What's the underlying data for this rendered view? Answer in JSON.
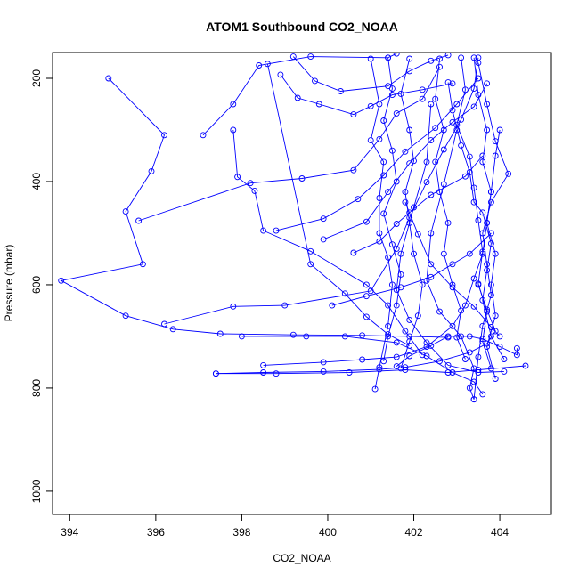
{
  "chart_data": {
    "type": "line",
    "title": "ATOM1 Southbound CO2_NOAA",
    "xlabel": "CO2_NOAA",
    "ylabel": "Pressure (mbar)",
    "xlim": [
      393.6,
      405.2
    ],
    "ylim": [
      1045,
      150
    ],
    "y_reversed": true,
    "x_ticks": [
      "394",
      "396",
      "398",
      "400",
      "402",
      "404"
    ],
    "y_ticks": [
      "200",
      "400",
      "600",
      "800",
      "1000"
    ],
    "grid": false,
    "legend": "none",
    "series_color": "#0000ff",
    "marker": "open-circle",
    "profiles": [
      [
        [
          394.9,
          200
        ],
        [
          396.2,
          310
        ],
        [
          395.9,
          380
        ],
        [
          395.3,
          458
        ],
        [
          395.7,
          560
        ],
        [
          393.8,
          592
        ],
        [
          395.3,
          660
        ],
        [
          396.4,
          686
        ],
        [
          397.5,
          695
        ],
        [
          399.2,
          697
        ],
        [
          400.8,
          698
        ],
        [
          401.9,
          700
        ],
        [
          402.8,
          702
        ]
      ],
      [
        [
          395.6,
          476
        ],
        [
          398.2,
          403
        ],
        [
          399.4,
          394
        ],
        [
          400.6,
          378
        ],
        [
          401.2,
          318
        ],
        [
          401.6,
          268
        ],
        [
          402.2,
          240
        ],
        [
          402.6,
          178
        ]
      ],
      [
        [
          397.1,
          310
        ],
        [
          397.8,
          250
        ],
        [
          398.4,
          175
        ],
        [
          399.6,
          158
        ],
        [
          401.4,
          160
        ],
        [
          401.6,
          152
        ]
      ],
      [
        [
          396.2,
          676
        ],
        [
          397.8,
          642
        ],
        [
          399.0,
          640
        ],
        [
          401.0,
          612
        ],
        [
          401.6,
          530
        ],
        [
          401.9,
          470
        ],
        [
          402.3,
          401
        ],
        [
          402.7,
          338
        ],
        [
          403.1,
          280
        ],
        [
          403.4,
          220
        ],
        [
          403.5,
          160
        ]
      ],
      [
        [
          397.4,
          772
        ],
        [
          398.5,
          770
        ],
        [
          399.9,
          768
        ],
        [
          401.2,
          764
        ],
        [
          401.8,
          760
        ],
        [
          402.6,
          748
        ],
        [
          403.3,
          731
        ],
        [
          403.7,
          714
        ],
        [
          403.9,
          690
        ],
        [
          403.7,
          648
        ],
        [
          403.5,
          600
        ]
      ],
      [
        [
          397.4,
          772
        ],
        [
          398.8,
          772
        ],
        [
          400.5,
          770
        ],
        [
          401.8,
          765
        ],
        [
          402.8,
          770
        ],
        [
          403.5,
          765
        ],
        [
          404.6,
          757
        ]
      ],
      [
        [
          398.5,
          756
        ],
        [
          399.9,
          750
        ],
        [
          400.8,
          745
        ],
        [
          401.6,
          740
        ],
        [
          402.3,
          720
        ],
        [
          402.9,
          680
        ],
        [
          403.2,
          640
        ],
        [
          403.4,
          588
        ],
        [
          403.6,
          540
        ],
        [
          403.7,
          480
        ],
        [
          403.8,
          420
        ],
        [
          403.9,
          350
        ],
        [
          404.0,
          300
        ]
      ],
      [
        [
          398.0,
          700
        ],
        [
          399.5,
          700
        ],
        [
          400.4,
          700
        ],
        [
          401.6,
          712
        ],
        [
          402.3,
          738
        ],
        [
          402.9,
          770
        ],
        [
          403.4,
          788
        ],
        [
          403.6,
          812
        ]
      ],
      [
        [
          397.8,
          300
        ],
        [
          397.9,
          391
        ],
        [
          398.3,
          418
        ],
        [
          398.5,
          495
        ],
        [
          399.6,
          535
        ],
        [
          400.9,
          600
        ],
        [
          401.4,
          640
        ],
        [
          401.8,
          690
        ],
        [
          402.2,
          736
        ]
      ],
      [
        [
          398.8,
          495
        ],
        [
          399.9,
          472
        ],
        [
          400.7,
          434
        ],
        [
          401.3,
          388
        ],
        [
          401.8,
          342
        ],
        [
          402.5,
          296
        ],
        [
          403.0,
          250
        ],
        [
          403.5,
          200
        ]
      ],
      [
        [
          398.9,
          193
        ],
        [
          399.3,
          238
        ],
        [
          399.8,
          250
        ],
        [
          400.6,
          270
        ],
        [
          401.0,
          254
        ],
        [
          401.5,
          232
        ],
        [
          402.2,
          222
        ],
        [
          402.9,
          210
        ]
      ],
      [
        [
          399.2,
          158
        ],
        [
          399.7,
          205
        ],
        [
          400.3,
          225
        ],
        [
          401.4,
          215
        ],
        [
          401.9,
          186
        ],
        [
          402.4,
          166
        ],
        [
          402.8,
          155
        ]
      ],
      [
        [
          398.6,
          172
        ],
        [
          399.6,
          560
        ],
        [
          400.4,
          617
        ],
        [
          400.9,
          662
        ],
        [
          401.4,
          696
        ],
        [
          401.9,
          718
        ]
      ],
      [
        [
          399.9,
          512
        ],
        [
          400.9,
          478
        ],
        [
          401.4,
          420
        ],
        [
          401.9,
          365
        ],
        [
          402.4,
          320
        ],
        [
          402.9,
          285
        ],
        [
          403.4,
          255
        ],
        [
          403.7,
          210
        ]
      ],
      [
        [
          400.6,
          538
        ],
        [
          401.2,
          516
        ],
        [
          401.6,
          482
        ],
        [
          401.9,
          460
        ],
        [
          402.4,
          426
        ],
        [
          403.2,
          390
        ],
        [
          403.6,
          350
        ]
      ],
      [
        [
          400.1,
          640
        ],
        [
          400.9,
          622
        ],
        [
          401.7,
          605
        ],
        [
          402.4,
          585
        ],
        [
          402.9,
          560
        ],
        [
          403.3,
          540
        ],
        [
          403.8,
          500
        ]
      ],
      [
        [
          401.0,
          162
        ],
        [
          401.2,
          250
        ],
        [
          401.0,
          320
        ],
        [
          401.3,
          362
        ],
        [
          401.2,
          432
        ],
        [
          401.2,
          500
        ],
        [
          401.4,
          547
        ],
        [
          401.5,
          600
        ],
        [
          401.4,
          680
        ],
        [
          401.2,
          760
        ],
        [
          401.1,
          802
        ]
      ],
      [
        [
          401.4,
          160
        ],
        [
          401.5,
          220
        ],
        [
          401.3,
          282
        ],
        [
          401.5,
          340
        ],
        [
          401.6,
          400
        ],
        [
          401.3,
          462
        ],
        [
          401.5,
          522
        ],
        [
          401.7,
          580
        ],
        [
          401.6,
          640
        ],
        [
          401.4,
          700
        ],
        [
          401.3,
          748
        ]
      ],
      [
        [
          401.9,
          162
        ],
        [
          401.7,
          230
        ],
        [
          401.9,
          300
        ],
        [
          402.0,
          360
        ],
        [
          401.8,
          420
        ],
        [
          401.9,
          480
        ],
        [
          402.0,
          540
        ],
        [
          402.2,
          600
        ],
        [
          402.1,
          660
        ],
        [
          401.9,
          710
        ],
        [
          401.7,
          762
        ]
      ],
      [
        [
          402.6,
          162
        ],
        [
          402.5,
          240
        ],
        [
          402.7,
          300
        ],
        [
          402.5,
          362
        ],
        [
          402.6,
          420
        ],
        [
          402.8,
          480
        ],
        [
          402.7,
          540
        ],
        [
          402.9,
          600
        ],
        [
          403.1,
          650
        ],
        [
          403.0,
          702
        ],
        [
          403.2,
          744
        ]
      ],
      [
        [
          403.1,
          160
        ],
        [
          403.2,
          222
        ],
        [
          403.0,
          290
        ],
        [
          403.3,
          352
        ],
        [
          403.4,
          412
        ],
        [
          403.5,
          475
        ],
        [
          403.6,
          536
        ],
        [
          403.5,
          598
        ],
        [
          403.7,
          652
        ],
        [
          403.6,
          710
        ],
        [
          403.8,
          762
        ]
      ],
      [
        [
          403.4,
          160
        ],
        [
          403.5,
          232
        ],
        [
          403.7,
          300
        ],
        [
          403.6,
          362
        ],
        [
          403.8,
          420
        ],
        [
          403.7,
          480
        ],
        [
          403.9,
          540
        ],
        [
          403.8,
          600
        ],
        [
          403.9,
          660
        ],
        [
          403.7,
          720
        ],
        [
          403.9,
          782
        ]
      ],
      [
        [
          403.5,
          170
        ],
        [
          403.7,
          250
        ],
        [
          403.9,
          322
        ],
        [
          404.2,
          385
        ],
        [
          403.8,
          440
        ],
        [
          403.6,
          500
        ],
        [
          403.7,
          560
        ],
        [
          403.8,
          620
        ],
        [
          403.6,
          680
        ],
        [
          403.5,
          740
        ],
        [
          403.4,
          822
        ]
      ],
      [
        [
          401.6,
          758
        ],
        [
          401.9,
          738
        ],
        [
          402.4,
          718
        ],
        [
          402.8,
          700
        ],
        [
          403.3,
          700
        ],
        [
          403.6,
          705
        ],
        [
          404.0,
          720
        ],
        [
          404.4,
          736
        ],
        [
          404.4,
          723
        ]
      ],
      [
        [
          403.0,
          300
        ],
        [
          402.7,
          405
        ],
        [
          402.4,
          500
        ],
        [
          402.3,
          592
        ],
        [
          402.6,
          652
        ],
        [
          403.1,
          700
        ],
        [
          403.4,
          762
        ],
        [
          403.3,
          800
        ],
        [
          403.4,
          822
        ]
      ],
      [
        [
          402.4,
          250
        ],
        [
          402.3,
          362
        ],
        [
          402.0,
          450
        ],
        [
          401.7,
          540
        ],
        [
          401.6,
          610
        ],
        [
          401.9,
          668
        ],
        [
          402.3,
          712
        ],
        [
          402.8,
          756
        ],
        [
          403.5,
          770
        ],
        [
          404.1,
          768
        ]
      ],
      [
        [
          401.8,
          440
        ],
        [
          402.1,
          502
        ],
        [
          402.4,
          560
        ],
        [
          402.9,
          605
        ],
        [
          403.4,
          642
        ],
        [
          403.8,
          682
        ],
        [
          404.0,
          700
        ]
      ],
      [
        [
          402.8,
          208
        ],
        [
          402.9,
          262
        ],
        [
          403.1,
          330
        ],
        [
          403.3,
          382
        ],
        [
          403.4,
          440
        ],
        [
          403.6,
          460
        ],
        [
          403.8,
          520
        ],
        [
          403.7,
          572
        ],
        [
          403.6,
          630
        ],
        [
          403.8,
          700
        ],
        [
          404.1,
          744
        ]
      ]
    ]
  }
}
